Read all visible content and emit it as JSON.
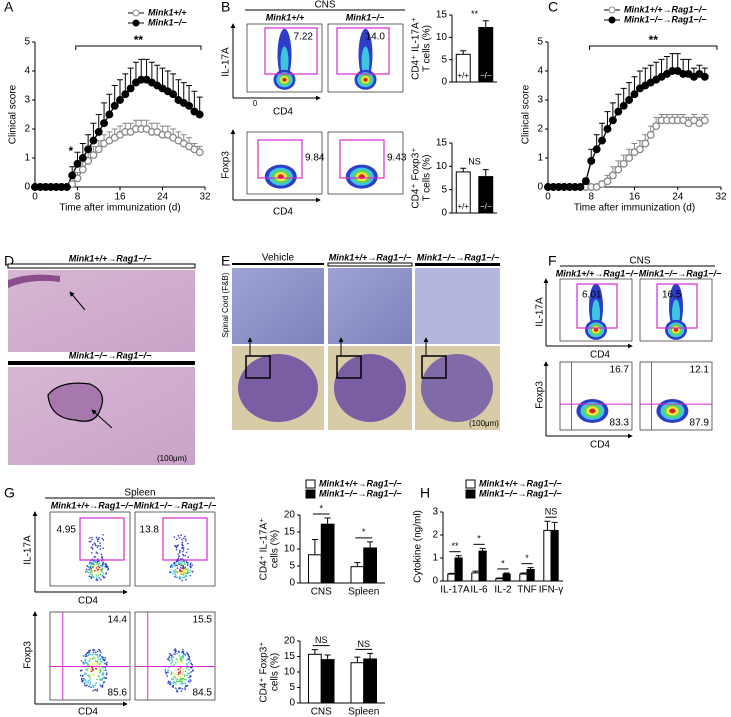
{
  "figure": {
    "labels": [
      "A",
      "B",
      "C",
      "D",
      "E",
      "F",
      "G",
      "H"
    ],
    "B": {
      "tissue": "CNS",
      "groups": [
        "Mink1+/+",
        "Mink1−/−"
      ],
      "rows": [
        {
          "ylabel": "IL-17A",
          "xlabel": "CD4",
          "origin": "0",
          "gates": [
            "7.22",
            "14.0"
          ]
        },
        {
          "ylabel": "Foxp3",
          "xlabel": "CD4",
          "gates": [
            "9.84",
            "9.43"
          ]
        }
      ]
    },
    "D": {
      "groups": [
        "Mink1+/+→Rag1−/−",
        "Mink1−/−→Rag1−/−"
      ],
      "scale": "(100μm)"
    },
    "E": {
      "groups": [
        "Vehicle",
        "Mink1+/+→Rag1−/−",
        "Mink1−/−→Rag1−/−"
      ],
      "side": "Spinal Cord (F&B)",
      "scale": "(100μm)"
    },
    "F": {
      "tissue": "CNS",
      "groups": [
        "Mink1+/+→Rag1−/−",
        "Mink1−/−→Rag1−/−"
      ],
      "rows": [
        {
          "ylabel": "IL-17A",
          "xlabel": "CD4",
          "gates": [
            "6.01",
            "16.5"
          ]
        },
        {
          "ylabel": "Foxp3",
          "xlabel": "CD4",
          "quadrants": [
            [
              "16.7",
              "83.3"
            ],
            [
              "12.1",
              "87.9"
            ]
          ]
        }
      ]
    },
    "G": {
      "tissue": "Spleen",
      "groups": [
        "Mink1+/+→Rag1−/−",
        "Mink1−/−→Rag1−/−"
      ],
      "rows": [
        {
          "ylabel": "IL-17A",
          "xlabel": "CD4",
          "gates": [
            "4.95",
            "13.8"
          ]
        },
        {
          "ylabel": "Foxp3",
          "xlabel": "CD4",
          "quadrants": [
            [
              "14.4",
              "85.6"
            ],
            [
              "15.5",
              "84.5"
            ]
          ]
        }
      ]
    }
  },
  "chart_data": [
    {
      "type": "line",
      "ylabel": "Clinical score",
      "xlabel": "Time after immunization (d)",
      "x": [
        0,
        1,
        2,
        3,
        4,
        5,
        6,
        7,
        8,
        9,
        10,
        11,
        12,
        13,
        14,
        15,
        16,
        17,
        18,
        19,
        20,
        21,
        22,
        23,
        24,
        25,
        26,
        27,
        28,
        29,
        30,
        31
      ],
      "xlim": [
        0,
        32
      ],
      "xticks": [
        0,
        8,
        16,
        24,
        32
      ],
      "ylim": [
        0,
        5
      ],
      "yticks": [
        0,
        1,
        2,
        3,
        4,
        5
      ],
      "series": [
        {
          "name": "Mink1+/+",
          "color": "#888888",
          "marker": "open",
          "values": [
            0,
            0,
            0,
            0,
            0,
            0,
            0,
            0.1,
            0.3,
            0.6,
            0.9,
            1.1,
            1.3,
            1.5,
            1.6,
            1.7,
            1.8,
            1.9,
            1.9,
            2.0,
            2.0,
            2.0,
            1.9,
            1.9,
            1.8,
            1.8,
            1.7,
            1.6,
            1.5,
            1.4,
            1.3,
            1.2
          ],
          "errors": [
            0,
            0,
            0,
            0,
            0,
            0,
            0,
            0.1,
            0.2,
            0.3,
            0.3,
            0.3,
            0.3,
            0.3,
            0.3,
            0.3,
            0.3,
            0.3,
            0.3,
            0.3,
            0.3,
            0.3,
            0.3,
            0.3,
            0.3,
            0.3,
            0.3,
            0.3,
            0.3,
            0.3,
            0.2,
            0.2
          ]
        },
        {
          "name": "Mink1−/−",
          "color": "#000000",
          "marker": "filled",
          "values": [
            0,
            0,
            0,
            0,
            0,
            0,
            0,
            0.4,
            0.8,
            1.0,
            1.3,
            1.6,
            1.9,
            2.2,
            2.5,
            2.8,
            3.0,
            3.2,
            3.4,
            3.6,
            3.7,
            3.7,
            3.6,
            3.5,
            3.4,
            3.3,
            3.2,
            3.0,
            2.9,
            2.8,
            2.6,
            2.5
          ],
          "errors": [
            0,
            0,
            0,
            0,
            0,
            0,
            0,
            0.3,
            0.4,
            0.5,
            0.5,
            0.6,
            0.6,
            0.7,
            0.7,
            0.7,
            0.7,
            0.7,
            0.7,
            0.7,
            0.7,
            0.7,
            0.7,
            0.7,
            0.7,
            0.7,
            0.7,
            0.7,
            0.7,
            0.7,
            0.7,
            0.6
          ]
        }
      ],
      "annotations": [
        "**",
        "*"
      ]
    },
    {
      "type": "line",
      "ylabel": "Clinical score",
      "xlabel": "Time after immunization (d)",
      "x": [
        0,
        1,
        2,
        3,
        4,
        5,
        6,
        7,
        8,
        9,
        10,
        11,
        12,
        13,
        14,
        15,
        16,
        17,
        18,
        19,
        20,
        21,
        22,
        23,
        24,
        25,
        26,
        27,
        28,
        29
      ],
      "xlim": [
        0,
        32
      ],
      "xticks": [
        0,
        8,
        16,
        24,
        32
      ],
      "ylim": [
        0,
        5
      ],
      "yticks": [
        0,
        1,
        2,
        3,
        4,
        5
      ],
      "series": [
        {
          "name": "Mink1+/+→Rag1−/−",
          "color": "#888888",
          "marker": "open",
          "values": [
            0,
            0,
            0,
            0,
            0,
            0,
            0,
            0,
            0,
            0,
            0.1,
            0.2,
            0.4,
            0.6,
            0.8,
            1.0,
            1.2,
            1.3,
            1.5,
            1.8,
            2.1,
            2.3,
            2.3,
            2.3,
            2.3,
            2.3,
            2.2,
            2.3,
            2.2,
            2.3
          ],
          "errors": [
            0,
            0,
            0,
            0,
            0,
            0,
            0,
            0,
            0,
            0,
            0.1,
            0.2,
            0.3,
            0.3,
            0.3,
            0.3,
            0.3,
            0.3,
            0.3,
            0.3,
            0.3,
            0.2,
            0.2,
            0.2,
            0.2,
            0.2,
            0.2,
            0.2,
            0.2,
            0.2
          ]
        },
        {
          "name": "Mink1−/−→Rag1−/−",
          "color": "#000000",
          "marker": "filled",
          "values": [
            0,
            0,
            0,
            0,
            0,
            0,
            0,
            0.2,
            0.9,
            1.3,
            1.6,
            2.0,
            2.3,
            2.6,
            2.8,
            3.0,
            3.2,
            3.4,
            3.5,
            3.6,
            3.7,
            3.8,
            3.9,
            4.0,
            4.0,
            3.9,
            3.9,
            3.8,
            3.9,
            3.8
          ],
          "errors": [
            0,
            0,
            0,
            0,
            0,
            0,
            0,
            0.1,
            0.4,
            0.5,
            0.6,
            0.6,
            0.6,
            0.6,
            0.6,
            0.6,
            0.6,
            0.6,
            0.6,
            0.6,
            0.6,
            0.6,
            0.6,
            0.6,
            0.6,
            0.5,
            0.5,
            0.3,
            0.3,
            0.3
          ]
        }
      ],
      "annotations": [
        "**"
      ]
    },
    {
      "type": "bar",
      "ylabel": [
        "CD4⁺ IL-17A⁺",
        "T cells (%)"
      ],
      "categories": [
        "+/+",
        "−/−"
      ],
      "colors": [
        "#ffffff",
        "#000000"
      ],
      "values": [
        6.2,
        12.2
      ],
      "errors": [
        0.8,
        1.5
      ],
      "ylim": [
        0,
        15
      ],
      "yticks": [
        0,
        5,
        10,
        15
      ],
      "annotations": [
        "**"
      ]
    },
    {
      "type": "bar",
      "ylabel": [
        "CD4⁺ Foxp3⁺",
        "T cells (%)"
      ],
      "categories": [
        "+/+",
        "−/−"
      ],
      "colors": [
        "#ffffff",
        "#000000"
      ],
      "values": [
        8.8,
        7.8
      ],
      "errors": [
        0.8,
        1.5
      ],
      "ylim": [
        0,
        15
      ],
      "yticks": [
        0,
        5,
        10,
        15
      ],
      "annotations": [
        "NS"
      ]
    },
    {
      "type": "bar",
      "ylabel": [
        "CD4⁺ IL-17A⁺",
        "cells (%)"
      ],
      "categories": [
        "CNS",
        "Spleen"
      ],
      "series": [
        {
          "name": "Mink1+/+→Rag1−/−",
          "color": "#ffffff",
          "values": [
            8.3,
            4.8
          ],
          "errors": [
            4.5,
            1.2
          ]
        },
        {
          "name": "Mink1−/−→Rag1−/−",
          "color": "#000000",
          "values": [
            17.3,
            10.3
          ],
          "errors": [
            1.8,
            1.8
          ]
        }
      ],
      "ylim": [
        0,
        20
      ],
      "yticks": [
        0,
        5,
        10,
        15,
        20
      ],
      "annotations": [
        "*",
        "*"
      ]
    },
    {
      "type": "bar",
      "ylabel": [
        "CD4⁺ Foxp3⁺",
        "cells (%)"
      ],
      "categories": [
        "CNS",
        "Spleen"
      ],
      "series": [
        {
          "color": "#ffffff",
          "values": [
            15.7,
            13.0
          ],
          "errors": [
            1.5,
            1.8
          ]
        },
        {
          "color": "#000000",
          "values": [
            14.0,
            14.2
          ],
          "errors": [
            1.5,
            1.8
          ]
        }
      ],
      "ylim": [
        0,
        20
      ],
      "yticks": [
        0,
        5,
        10,
        15,
        20
      ],
      "annotations": [
        "NS",
        "NS"
      ]
    },
    {
      "type": "bar",
      "ylabel": [
        "Cytokine (ng/ml)"
      ],
      "categories": [
        "IL-17A",
        "IL-6",
        "IL-2",
        "TNF",
        "IFN-γ"
      ],
      "series": [
        {
          "name": "Mink1+/+→Rag1−/−",
          "color": "#ffffff",
          "values": [
            0.3,
            0.35,
            0.1,
            0.3,
            2.2
          ],
          "errors": [
            0.03,
            0.08,
            0.03,
            0.05,
            0.4
          ]
        },
        {
          "name": "Mink1−/−→Rag1−/−",
          "color": "#000000",
          "values": [
            1.0,
            1.3,
            0.3,
            0.5,
            2.2
          ],
          "errors": [
            0.1,
            0.12,
            0.05,
            0.08,
            0.35
          ]
        }
      ],
      "ylim": [
        0,
        3
      ],
      "yticks": [
        0,
        1,
        2,
        3
      ],
      "annotations": [
        "**",
        "*",
        "*",
        "*",
        "NS"
      ]
    }
  ]
}
